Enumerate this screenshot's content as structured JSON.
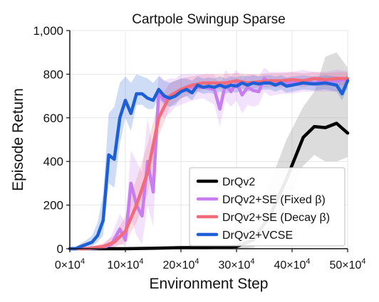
{
  "chart_data": {
    "type": "line",
    "title": "Cartpole Swingup Sparse",
    "xlabel": "Environment Step",
    "ylabel": "Episode Return",
    "xlim": [
      0,
      500000
    ],
    "ylim": [
      0,
      1000
    ],
    "xticks": [
      0,
      100000,
      200000,
      300000,
      400000,
      500000
    ],
    "xtick_labels": [
      {
        "mant": "0×10",
        "exp": "4"
      },
      {
        "mant": "10×10",
        "exp": "4"
      },
      {
        "mant": "20×10",
        "exp": "4"
      },
      {
        "mant": "30×10",
        "exp": "4"
      },
      {
        "mant": "40×10",
        "exp": "4"
      },
      {
        "mant": "50×10",
        "exp": "4"
      }
    ],
    "yticks": [
      0,
      200,
      400,
      600,
      800,
      1000
    ],
    "ytick_labels": [
      "0",
      "200",
      "400",
      "600",
      "800",
      "1,000"
    ],
    "grid": true,
    "legend_position": "bottom-right",
    "series": [
      {
        "name": "DrQv2",
        "color": "#000000",
        "x": [
          0,
          100000,
          150000,
          200000,
          250000,
          300000,
          330000,
          360000,
          390000,
          420000,
          440000,
          460000,
          480000,
          500000
        ],
        "values": [
          0,
          0,
          2,
          5,
          5,
          10,
          40,
          150,
          320,
          510,
          560,
          555,
          575,
          530
        ],
        "band_lower": [
          0,
          0,
          0,
          0,
          0,
          0,
          5,
          60,
          180,
          380,
          430,
          400,
          400,
          420
        ],
        "band_upper": [
          0,
          0,
          5,
          10,
          12,
          30,
          120,
          300,
          500,
          650,
          720,
          880,
          900,
          830
        ]
      },
      {
        "name": "DrQv2+SE (Fixed β)",
        "color": "#c77cf0",
        "x": [
          0,
          30000,
          60000,
          75000,
          90000,
          100000,
          110000,
          120000,
          130000,
          140000,
          150000,
          160000,
          170000,
          180000,
          190000,
          200000,
          220000,
          240000,
          260000,
          270000,
          280000,
          290000,
          300000,
          310000,
          320000,
          330000,
          340000,
          350000,
          360000,
          380000,
          400000,
          420000,
          440000,
          460000,
          480000,
          500000
        ],
        "values": [
          0,
          0,
          5,
          20,
          90,
          40,
          300,
          200,
          150,
          400,
          260,
          720,
          680,
          690,
          710,
          730,
          740,
          740,
          730,
          640,
          755,
          720,
          760,
          705,
          740,
          725,
          720,
          780,
          760,
          760,
          760,
          770,
          760,
          770,
          770,
          775
        ],
        "band_lower": [
          0,
          0,
          0,
          5,
          20,
          10,
          150,
          60,
          20,
          200,
          100,
          620,
          600,
          620,
          650,
          660,
          680,
          690,
          660,
          560,
          680,
          650,
          680,
          620,
          660,
          650,
          660,
          720,
          700,
          710,
          710,
          720,
          720,
          720,
          720,
          730
        ],
        "band_upper": [
          0,
          5,
          20,
          60,
          160,
          120,
          450,
          400,
          350,
          600,
          450,
          800,
          770,
          780,
          780,
          800,
          800,
          800,
          800,
          740,
          820,
          790,
          820,
          780,
          800,
          800,
          790,
          830,
          810,
          810,
          810,
          820,
          810,
          810,
          820,
          815
        ]
      },
      {
        "name": "DrQv2+SE (Decay β)",
        "color": "#f26b7a",
        "x": [
          0,
          30000,
          60000,
          80000,
          100000,
          120000,
          140000,
          160000,
          170000,
          180000,
          200000,
          220000,
          240000,
          260000,
          280000,
          300000,
          320000,
          340000,
          360000,
          380000,
          400000,
          420000,
          440000,
          460000,
          480000,
          500000
        ],
        "values": [
          0,
          0,
          10,
          30,
          80,
          200,
          350,
          600,
          650,
          700,
          730,
          750,
          760,
          760,
          760,
          770,
          760,
          765,
          770,
          770,
          775,
          770,
          780,
          775,
          780,
          780
        ],
        "band_lower": [
          0,
          0,
          0,
          5,
          30,
          120,
          250,
          520,
          580,
          650,
          690,
          710,
          730,
          730,
          730,
          740,
          730,
          740,
          740,
          740,
          750,
          740,
          750,
          745,
          750,
          750
        ],
        "band_upper": [
          0,
          5,
          25,
          60,
          150,
          320,
          480,
          680,
          720,
          760,
          780,
          790,
          800,
          800,
          800,
          805,
          800,
          800,
          805,
          805,
          810,
          805,
          810,
          805,
          810,
          810
        ]
      },
      {
        "name": "DrQv2+VCSE",
        "color": "#1f5fd6",
        "x": [
          0,
          10000,
          20000,
          30000,
          40000,
          50000,
          60000,
          70000,
          80000,
          90000,
          100000,
          110000,
          120000,
          130000,
          140000,
          150000,
          160000,
          170000,
          180000,
          190000,
          200000,
          210000,
          220000,
          230000,
          240000,
          250000,
          260000,
          270000,
          280000,
          290000,
          300000,
          310000,
          320000,
          330000,
          340000,
          350000,
          360000,
          370000,
          380000,
          390000,
          400000,
          420000,
          440000,
          460000,
          480000,
          490000,
          500000
        ],
        "values": [
          0,
          0,
          10,
          20,
          30,
          60,
          130,
          430,
          410,
          600,
          680,
          620,
          710,
          710,
          690,
          680,
          730,
          700,
          690,
          700,
          720,
          730,
          715,
          750,
          740,
          745,
          740,
          750,
          740,
          750,
          745,
          760,
          750,
          760,
          755,
          760,
          760,
          750,
          760,
          745,
          750,
          760,
          755,
          760,
          750,
          710,
          770
        ],
        "band_lower": [
          0,
          0,
          0,
          5,
          10,
          30,
          60,
          300,
          280,
          480,
          600,
          540,
          660,
          660,
          640,
          640,
          690,
          660,
          650,
          660,
          690,
          700,
          680,
          720,
          710,
          715,
          710,
          720,
          710,
          720,
          715,
          730,
          720,
          730,
          725,
          730,
          730,
          720,
          730,
          715,
          720,
          730,
          725,
          730,
          720,
          680,
          740
        ],
        "band_upper": [
          0,
          5,
          25,
          40,
          60,
          120,
          250,
          620,
          650,
          760,
          790,
          760,
          800,
          790,
          780,
          760,
          790,
          770,
          760,
          770,
          780,
          780,
          770,
          790,
          780,
          785,
          780,
          790,
          780,
          790,
          785,
          795,
          790,
          795,
          790,
          795,
          795,
          790,
          795,
          785,
          790,
          795,
          790,
          795,
          790,
          760,
          800
        ]
      }
    ]
  }
}
